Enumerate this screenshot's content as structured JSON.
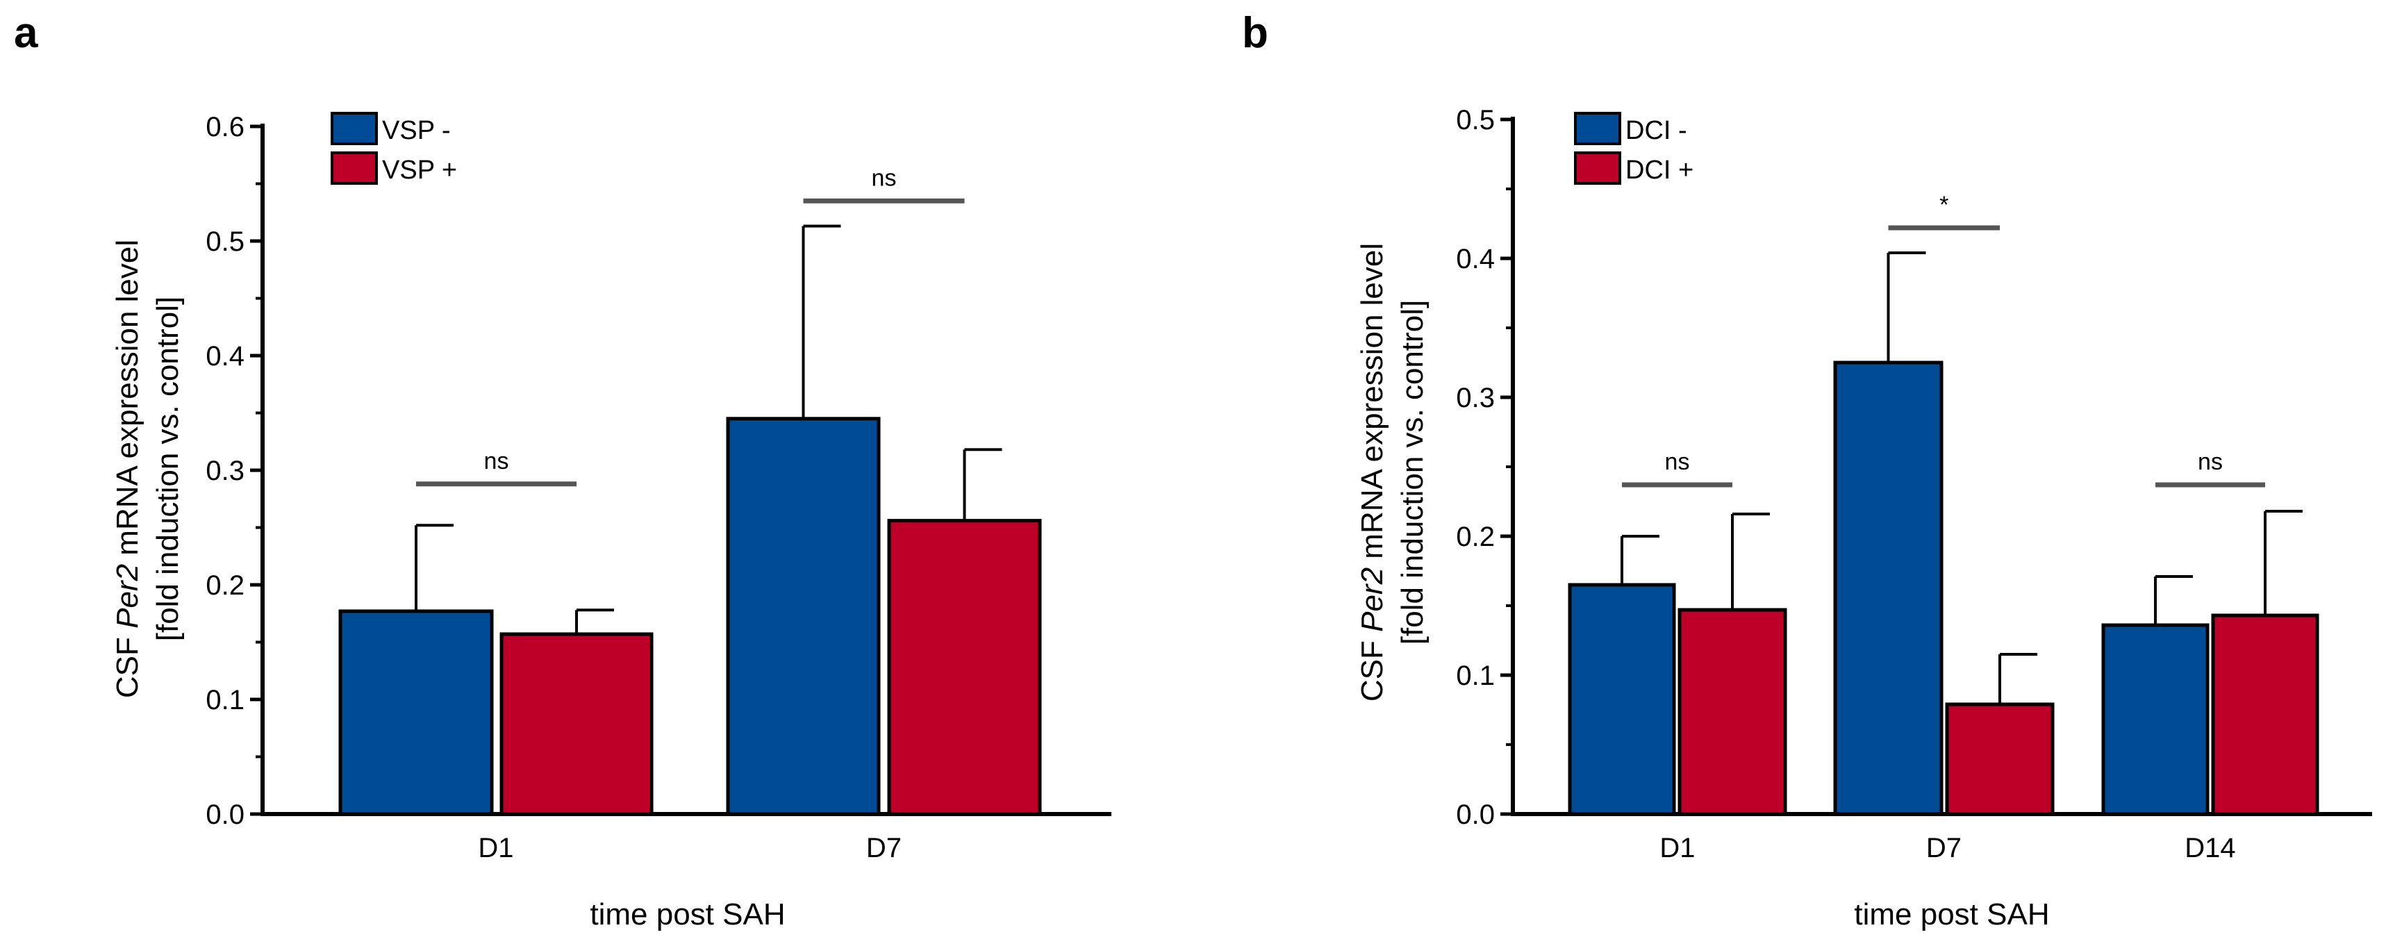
{
  "colors": {
    "blue": "#004B96",
    "red": "#BE0028",
    "sig_line": "#555555",
    "axis": "#000000"
  },
  "chart_data": [
    {
      "panel": "a",
      "type": "bar",
      "ylabel_prefix": "CSF ",
      "ylabel_gene": "Per2",
      "ylabel_suffix": " mRNA expression level",
      "ylabel_line2": "[fold induction vs. control]",
      "xlabel": "time post SAH",
      "ylim": [
        0,
        0.6
      ],
      "yticks": [
        0.0,
        0.1,
        0.2,
        0.3,
        0.4,
        0.5,
        0.6
      ],
      "ytick_labels": [
        "0.0",
        "0.1",
        "0.2",
        "0.3",
        "0.4",
        "0.5",
        "0.6"
      ],
      "categories": [
        "D1",
        "D7"
      ],
      "series": [
        {
          "name": "VSP -",
          "color": "#004B96",
          "values": [
            0.177,
            0.345
          ],
          "errors": [
            0.075,
            0.168
          ]
        },
        {
          "name": "VSP +",
          "color": "#BE0028",
          "values": [
            0.157,
            0.256
          ],
          "errors": [
            0.021,
            0.062
          ]
        }
      ],
      "significance": [
        {
          "category": "D1",
          "label": "ns",
          "y": 0.288
        },
        {
          "category": "D7",
          "label": "ns",
          "y": 0.535
        }
      ]
    },
    {
      "panel": "b",
      "type": "bar",
      "ylabel_prefix": "CSF ",
      "ylabel_gene": "Per2",
      "ylabel_suffix": " mRNA expression level",
      "ylabel_line2": "[fold induction vs. control]",
      "xlabel": "time post SAH",
      "ylim": [
        0,
        0.5
      ],
      "yticks": [
        0.0,
        0.1,
        0.2,
        0.3,
        0.4,
        0.5
      ],
      "ytick_labels": [
        "0.0",
        "0.1",
        "0.2",
        "0.3",
        "0.4",
        "0.5"
      ],
      "categories": [
        "D1",
        "D7",
        "D14"
      ],
      "series": [
        {
          "name": "DCI -",
          "color": "#004B96",
          "values": [
            0.165,
            0.325,
            0.136
          ],
          "errors": [
            0.035,
            0.079,
            0.035
          ]
        },
        {
          "name": "DCI +",
          "color": "#BE0028",
          "values": [
            0.147,
            0.079,
            0.143
          ],
          "errors": [
            0.069,
            0.036,
            0.075
          ]
        }
      ],
      "significance": [
        {
          "category": "D1",
          "label": "ns",
          "y": 0.237
        },
        {
          "category": "D7",
          "label": "*",
          "y": 0.422
        },
        {
          "category": "D14",
          "label": "ns",
          "y": 0.237
        }
      ]
    }
  ]
}
